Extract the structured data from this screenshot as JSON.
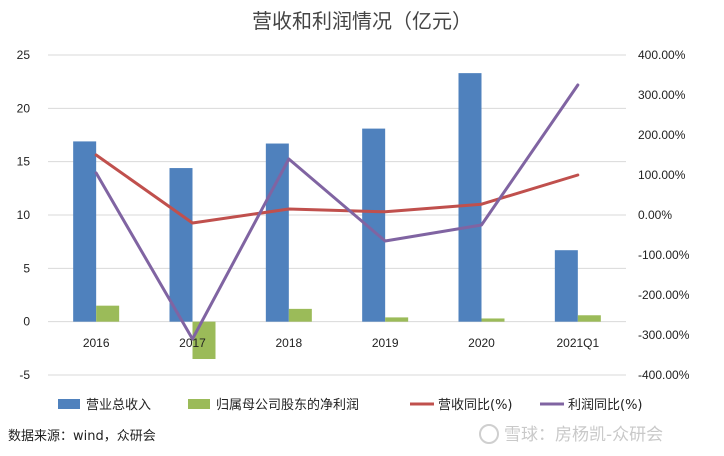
{
  "chart_data": {
    "type": "bar+line",
    "title": "营收和利润情况（亿元）",
    "categories": [
      "2016",
      "2017",
      "2018",
      "2019",
      "2020",
      "2021Q1"
    ],
    "series": [
      {
        "name": "营业总收入",
        "type": "bar",
        "axis": "left",
        "color": "#4f81bd",
        "values": [
          16.9,
          14.4,
          16.7,
          18.1,
          23.3,
          6.7
        ]
      },
      {
        "name": "归属母公司股东的净利润",
        "type": "bar",
        "axis": "left",
        "color": "#9bbb59",
        "values": [
          1.5,
          -3.5,
          1.2,
          0.4,
          0.3,
          0.6
        ]
      },
      {
        "name": "营收同比(%)",
        "type": "line",
        "axis": "right",
        "color": "#c0504d",
        "values": [
          150,
          -20,
          15,
          8,
          27,
          100
        ]
      },
      {
        "name": "利润同比(%)",
        "type": "line",
        "axis": "right",
        "color": "#8064a2",
        "values": [
          105,
          -310,
          140,
          -65,
          -25,
          325
        ]
      }
    ],
    "y_left": {
      "min": -5,
      "max": 25,
      "ticks": [
        "-5",
        "0",
        "5",
        "10",
        "15",
        "20",
        "25"
      ]
    },
    "y_right": {
      "min": -400,
      "max": 400,
      "ticks": [
        "-400.00%",
        "-300.00%",
        "-200.00%",
        "-100.00%",
        "0.00%",
        "100.00%",
        "200.00%",
        "300.00%",
        "400.00%"
      ]
    },
    "legend_position": "bottom"
  },
  "source": "数据来源：wind，众研会",
  "watermark": "雪球：房杨凯-众研会"
}
